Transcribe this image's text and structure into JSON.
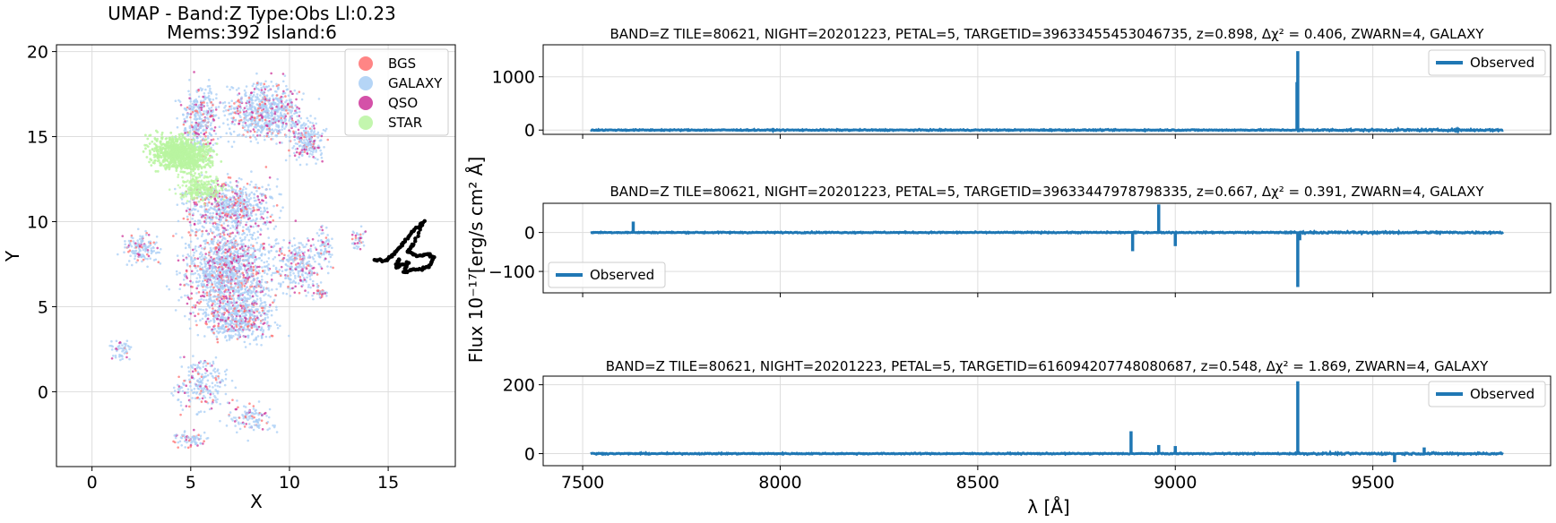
{
  "chart_data": [
    {
      "type": "scatter",
      "title": "UMAP  -  Band:Z Type:Obs Ll:0.23",
      "subtitle": "Mems:392 Island:6",
      "xlabel": "X",
      "ylabel": "Y",
      "xlim": [
        -1.8,
        18.4
      ],
      "ylim": [
        -4.4,
        20.4
      ],
      "xticks": [
        "0",
        "5",
        "10",
        "15"
      ],
      "yticks": [
        "0",
        "5",
        "10",
        "15",
        "20"
      ],
      "grid": true,
      "legend_position": "top-right",
      "series": [
        {
          "name": "BGS",
          "color": "#ff7070"
        },
        {
          "name": "GALAXY",
          "color": "#a8cef5"
        },
        {
          "name": "QSO",
          "color": "#cc3399"
        },
        {
          "name": "STAR",
          "color": "#b9f5a0"
        }
      ],
      "highlight_points": [
        [
          14.3,
          7.8
        ],
        [
          14.8,
          7.7
        ],
        [
          15.2,
          8.0
        ],
        [
          15.6,
          8.5
        ],
        [
          16.0,
          9.1
        ],
        [
          16.4,
          9.6
        ],
        [
          16.8,
          10.0
        ],
        [
          16.3,
          8.7
        ],
        [
          16.0,
          8.2
        ],
        [
          16.5,
          8.0
        ],
        [
          17.0,
          8.1
        ],
        [
          17.3,
          7.9
        ],
        [
          17.1,
          7.4
        ],
        [
          16.7,
          7.2
        ],
        [
          16.2,
          7.2
        ],
        [
          15.8,
          7.0
        ],
        [
          16.0,
          7.6
        ],
        [
          15.4,
          7.3
        ],
        [
          15.6,
          7.9
        ]
      ]
    },
    {
      "type": "line",
      "title": "BAND=Z TILE=80621, NIGHT=20201223, PETAL=5, TARGETID=39633455453046735, z=0.898, Δχ² = 0.406, ZWARN=4, GALAXY",
      "series": [
        {
          "name": "Observed",
          "color": "#1f77b4"
        }
      ],
      "xlim": [
        7400,
        9950
      ],
      "ylim": [
        -80,
        1600
      ],
      "yticks": [
        "0",
        "1000"
      ],
      "legend_position": "top-right",
      "spikes": [
        [
          9310,
          1480
        ],
        [
          9308,
          900
        ],
        [
          9312,
          -40
        ]
      ]
    },
    {
      "type": "line",
      "title": "BAND=Z TILE=80621, NIGHT=20201223, PETAL=5, TARGETID=39633447978798335, z=0.667, Δχ² = 0.391, ZWARN=4, GALAXY",
      "series": [
        {
          "name": "Observed",
          "color": "#1f77b4"
        }
      ],
      "xlim": [
        7400,
        9950
      ],
      "ylim": [
        -155,
        75
      ],
      "yticks": [
        "0",
        "−100"
      ],
      "legend_position": "lower-left",
      "spikes": [
        [
          7628,
          28
        ],
        [
          8892,
          -48
        ],
        [
          8958,
          72
        ],
        [
          9000,
          -35
        ],
        [
          9310,
          -140
        ],
        [
          9315,
          -20
        ]
      ]
    },
    {
      "type": "line",
      "title": "BAND=Z TILE=80621, NIGHT=20201223, PETAL=5, TARGETID=61609420774808068​7, z=0.548, Δχ² = 1.869, ZWARN=4, GALAXY",
      "series": [
        {
          "name": "Observed",
          "color": "#1f77b4"
        }
      ],
      "xlim": [
        7400,
        9950
      ],
      "ylim": [
        -35,
        225
      ],
      "xticks": [
        "7500",
        "8000",
        "8500",
        "9000",
        "9500"
      ],
      "yticks": [
        "0",
        "200"
      ],
      "xlabel": "λ [Å]",
      "legend_position": "top-right",
      "spikes": [
        [
          8888,
          65
        ],
        [
          8958,
          25
        ],
        [
          9000,
          22
        ],
        [
          9310,
          210
        ],
        [
          9555,
          -25
        ],
        [
          9630,
          18
        ]
      ]
    }
  ],
  "shared_ylabel": "Flux 10⁻¹⁷[erg/s cm² Å]"
}
